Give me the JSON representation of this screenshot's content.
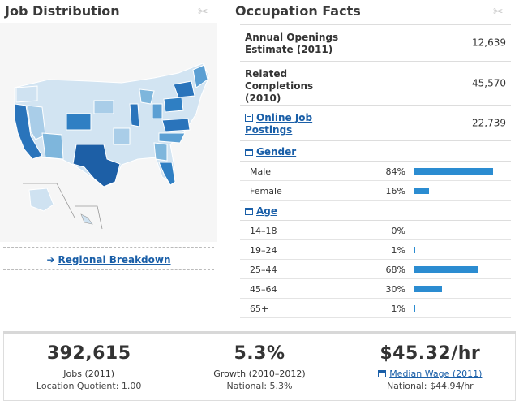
{
  "left": {
    "title": "Job Distribution",
    "regional_link": "Regional Breakdown"
  },
  "right": {
    "title": "Occupation Facts",
    "facts": [
      {
        "label": "Annual Openings Estimate (2011)",
        "value": "12,639"
      },
      {
        "label": "Related Completions (2010)",
        "value": "45,570"
      },
      {
        "label": "Online Job Postings",
        "value": "22,739"
      }
    ],
    "gender": {
      "title": "Gender",
      "rows": [
        {
          "label": "Male",
          "pct_text": "84%",
          "pct": 84
        },
        {
          "label": "Female",
          "pct_text": "16%",
          "pct": 16
        }
      ]
    },
    "age": {
      "title": "Age",
      "rows": [
        {
          "label": "14–18",
          "pct_text": "0%",
          "pct": 0
        },
        {
          "label": "19–24",
          "pct_text": "1%",
          "pct": 1
        },
        {
          "label": "25–44",
          "pct_text": "68%",
          "pct": 68
        },
        {
          "label": "45–64",
          "pct_text": "30%",
          "pct": 30
        },
        {
          "label": "65+",
          "pct_text": "1%",
          "pct": 1
        }
      ]
    }
  },
  "stats": [
    {
      "big": "392,615",
      "sub": "Jobs (2011)",
      "sub2": "Location Quotient: 1.00"
    },
    {
      "big": "5.3%",
      "sub": "Growth (2010–2012)",
      "sub2": "National: 5.3%"
    },
    {
      "big": "$45.32/hr",
      "sub": "Median Wage (2011)",
      "sub2": "National: $44.94/hr"
    }
  ],
  "colors": {
    "link": "#1a5fa8",
    "bar": "#2b8cd1",
    "map_light": "#d2e4f2",
    "map_mid": "#7eb6dc",
    "map_dark": "#2a74bb",
    "map_darkest": "#1d5fa6"
  },
  "icons": {
    "scissors": "scissors-icon",
    "external": "external-link-icon",
    "section": "window-icon",
    "arrow": "arrow-right-icon"
  }
}
